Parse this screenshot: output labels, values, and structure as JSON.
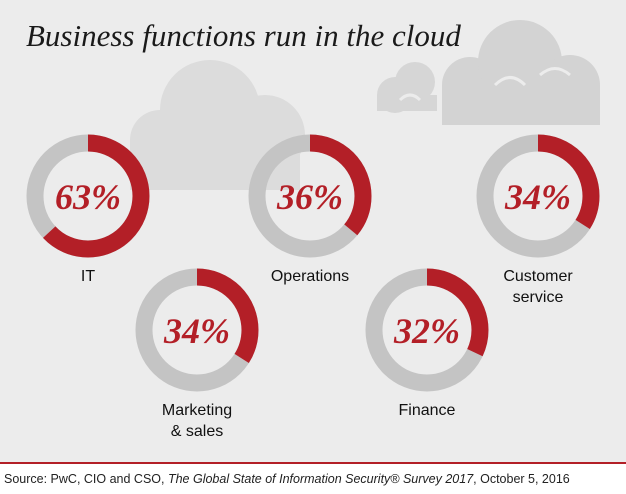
{
  "colors": {
    "accent": "#b31f27",
    "track": "#c4c4c4",
    "panel": "#ececec",
    "cloud": "#e0e0e0"
  },
  "chart_data": {
    "type": "donut",
    "title": "Business functions run in the cloud",
    "unit": "%",
    "categories": [
      "IT",
      "Operations",
      "Customer service",
      "Marketing & sales",
      "Finance"
    ],
    "values": [
      63,
      36,
      34,
      34,
      32
    ],
    "display_labels": [
      "63%",
      "36%",
      "34%",
      "34%",
      "32%"
    ],
    "label_lines": [
      [
        "IT"
      ],
      [
        "Operations"
      ],
      [
        "Customer",
        "service"
      ],
      [
        "Marketing",
        "& sales"
      ],
      [
        "Finance"
      ]
    ]
  },
  "source": {
    "prefix": "Source: PwC, CIO and CSO, ",
    "publication": "The Global State of Information Security® Survey 2017",
    "suffix": ", October 5, 2016"
  }
}
